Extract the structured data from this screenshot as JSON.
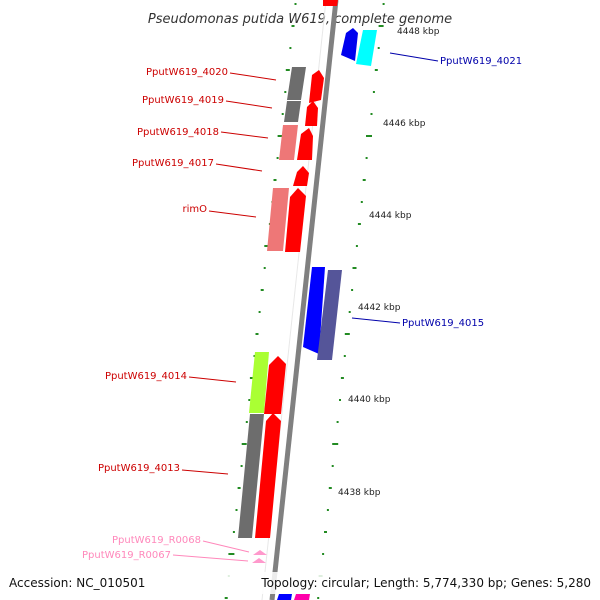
{
  "title": "Pseudomonas putida W619, complete genome",
  "accession": "Accession: NC_010501",
  "summary": "Topology: circular; Length: 5,774,330 bp; Genes: 5,280",
  "ticks": [
    "4448 kbp",
    "4446 kbp",
    "4444 kbp",
    "4442 kbp",
    "4440 kbp",
    "4438 kbp"
  ],
  "gene_labels": {
    "left": [
      "PputW619_4020",
      "PputW619_4019",
      "PputW619_4018",
      "PputW619_4017",
      "rimO",
      "PputW619_4014",
      "PputW619_4013"
    ],
    "left_rna": [
      "PputW619_R0068",
      "PputW619_R0067"
    ],
    "right": [
      "PputW619_4021",
      "PputW619_4015"
    ]
  },
  "colors": {
    "forward_cds": "#ff0000",
    "reverse_cds": "#0000ff",
    "backbone": "#808080",
    "gc_dots": "#228b22",
    "rna": "#ff99cc",
    "label_left": "#cc0000",
    "label_right": "#0000aa",
    "label_rna": "#ff88bb",
    "cyan": "#00ffff",
    "lime": "#aaff33",
    "slate": "#555599",
    "pink": "#ee7777",
    "gray": "#6d6d6d"
  }
}
